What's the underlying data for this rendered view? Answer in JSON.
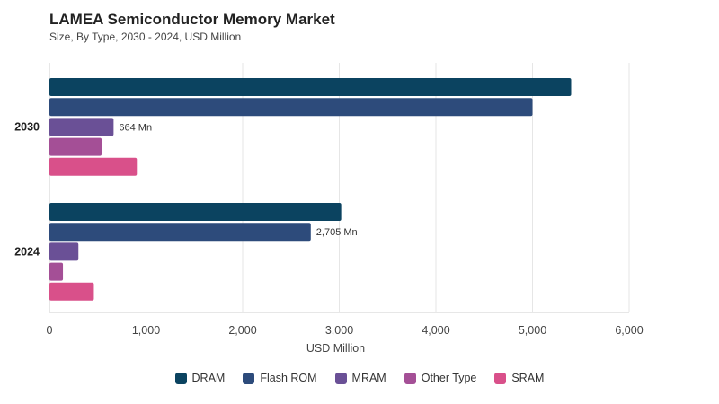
{
  "title": "LAMEA Semiconductor Memory Market",
  "subtitle": "Size, By Type, 2030 - 2024, USD Million",
  "chart_data": {
    "type": "bar",
    "orientation": "horizontal",
    "categories": [
      "2030",
      "2024"
    ],
    "series": [
      {
        "name": "DRAM",
        "color": "#0b4360",
        "values": [
          5400,
          3020
        ]
      },
      {
        "name": "Flash ROM",
        "color": "#2d4b7b",
        "values": [
          5000,
          2705
        ]
      },
      {
        "name": "MRAM",
        "color": "#6a5096",
        "values": [
          664,
          300
        ]
      },
      {
        "name": "Other Type",
        "color": "#a44f96",
        "values": [
          540,
          140
        ]
      },
      {
        "name": "SRAM",
        "color": "#d9508a",
        "values": [
          905,
          460
        ]
      }
    ],
    "data_labels": [
      {
        "series": "MRAM",
        "category": "2030",
        "text": "664 Mn"
      },
      {
        "series": "Flash ROM",
        "category": "2024",
        "text": "2,705 Mn"
      }
    ],
    "xlabel": "USD Million",
    "xlim": [
      0,
      6000
    ],
    "xticks": [
      0,
      1000,
      2000,
      3000,
      4000,
      5000,
      6000
    ],
    "xtick_labels": [
      "0",
      "1,000",
      "2,000",
      "3,000",
      "4,000",
      "5,000",
      "6,000"
    ],
    "grid": true,
    "legend": "bottom-center"
  }
}
